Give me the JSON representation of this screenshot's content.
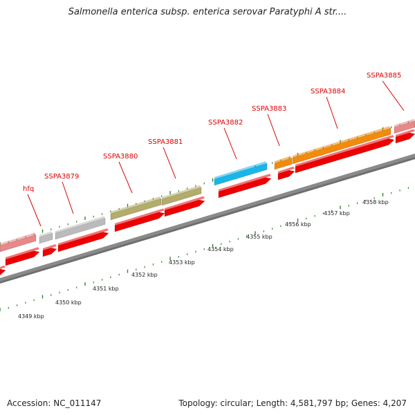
{
  "header": {
    "title": "Salmonella enterica subsp. enterica serovar Paratyphi A str...."
  },
  "footer": {
    "accession": "Accession: NC_011147",
    "summary": "Topology: circular; Length: 4,581,797 bp; Genes: 4,207"
  },
  "colors": {
    "backbone": "#8a8a8a",
    "cds_strand": "#ee0000",
    "pink": "#e88888",
    "gray": "#bbbbbb",
    "olive": "#b3ac6a",
    "blue": "#19b6ea",
    "orange": "#f28b0c",
    "tick": "#2c8a2c",
    "label": "#dd0000"
  },
  "gene_labels": [
    "hfq",
    "SSPA3879",
    "SSPA3880",
    "SSPA3881",
    "SSPA3882",
    "SSPA3883",
    "SSPA3884",
    "SSPA3885"
  ],
  "kbp_labels": [
    "4349 kbp",
    "4350 kbp",
    "4351 kbp",
    "4352 kbp",
    "4353 kbp",
    "4354 kbp",
    "4355 kbp",
    "4356 kbp",
    "4357 kbp",
    "4358 kbp"
  ],
  "genes": [
    {
      "label": "",
      "color": "pink"
    },
    {
      "label": "hfq",
      "color": "gray"
    },
    {
      "label": "SSPA3879",
      "color": "gray"
    },
    {
      "label": "SSPA3880",
      "color": "olive"
    },
    {
      "label": "SSPA3881",
      "color": "olive"
    },
    {
      "label": "SSPA3882",
      "color": "blue"
    },
    {
      "label": "SSPA3883",
      "color": "orange"
    },
    {
      "label": "SSPA3884",
      "color": "orange"
    },
    {
      "label": "SSPA3885",
      "color": "pink"
    }
  ]
}
